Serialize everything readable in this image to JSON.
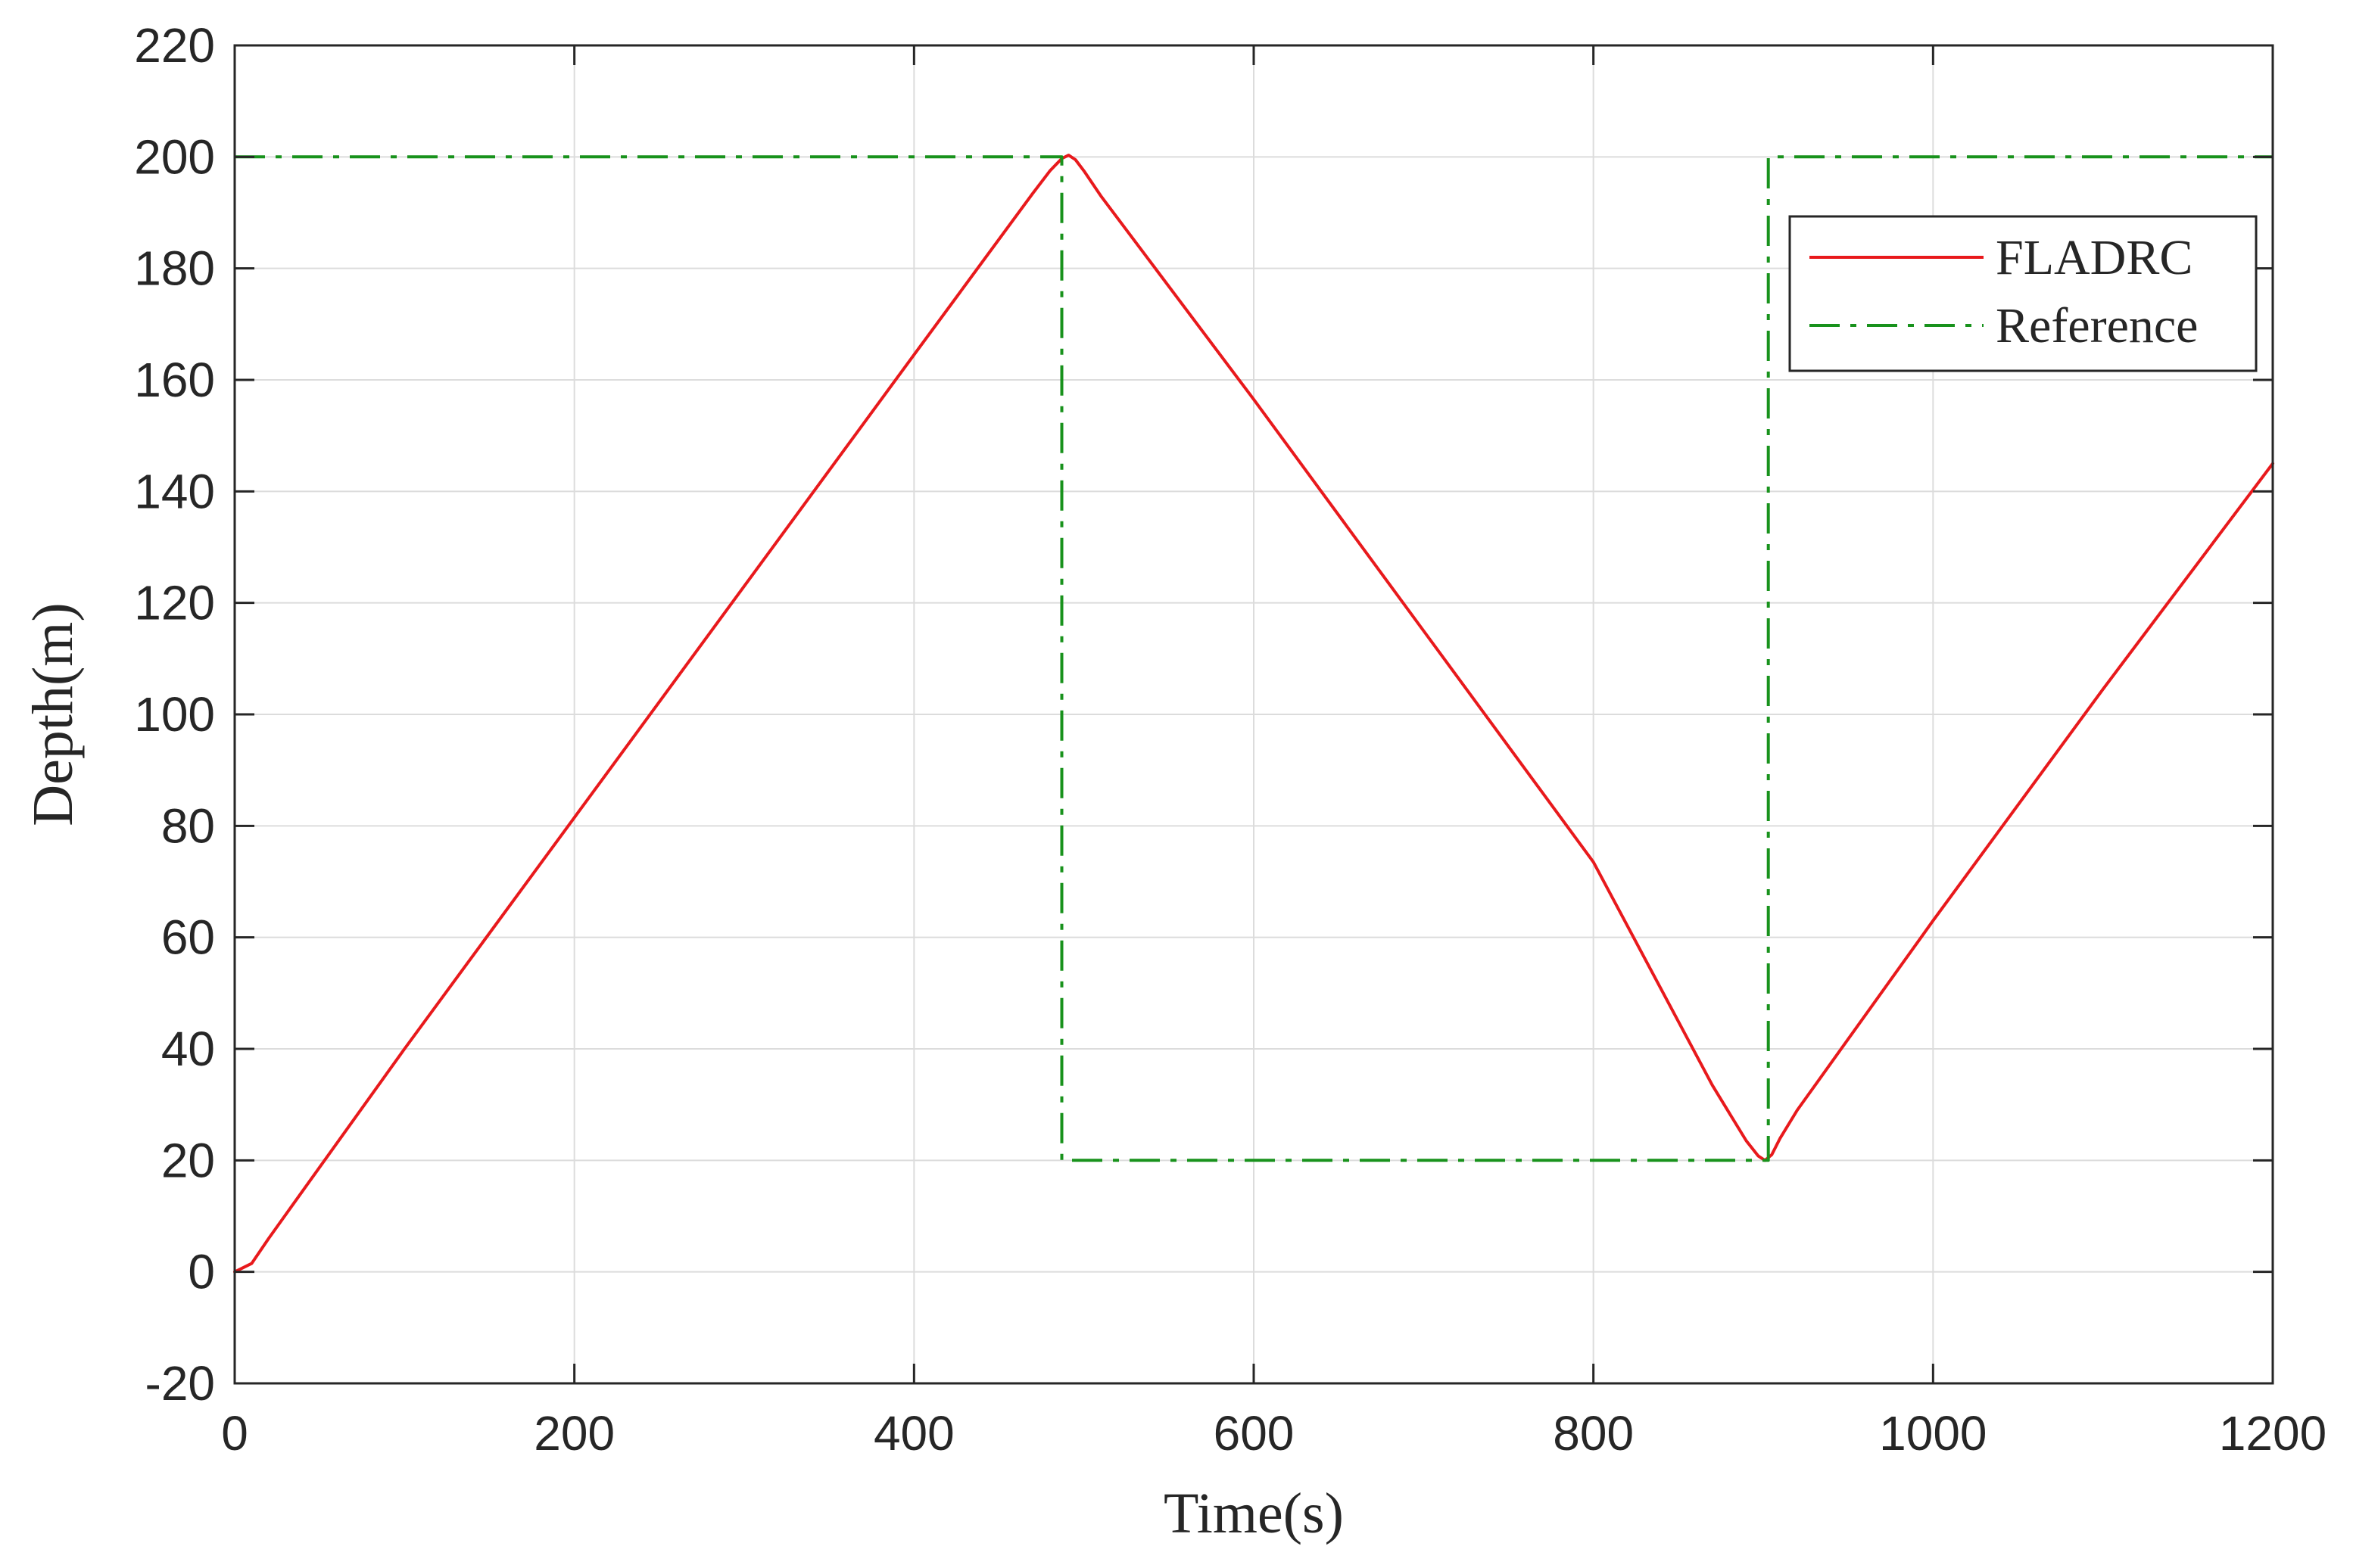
{
  "chart_data": {
    "type": "line",
    "title": "",
    "xlabel": "Time(s)",
    "ylabel": "Depth(m)",
    "xlim": [
      0,
      1200
    ],
    "ylim": [
      -20,
      220
    ],
    "x_ticks": [
      0,
      200,
      400,
      600,
      800,
      1000,
      1200
    ],
    "y_ticks": [
      -20,
      0,
      20,
      40,
      60,
      80,
      100,
      120,
      140,
      160,
      180,
      200,
      220
    ],
    "grid": true,
    "legend_position": "top-right",
    "series": [
      {
        "name": "FLADRC",
        "color": "#e8191c",
        "style": "solid",
        "x": [
          0,
          10,
          20,
          40,
          100,
          200,
          300,
          400,
          470,
          480,
          487,
          491,
          495,
          500,
          510,
          600,
          700,
          800,
          870,
          880,
          890,
          897,
          901,
          905,
          910,
          920,
          1000,
          1100,
          1200
        ],
        "y": [
          0,
          1.5,
          6,
          14.5,
          40,
          81.5,
          123,
          164.5,
          193.5,
          197.5,
          199.7,
          200.3,
          199.5,
          197.5,
          193,
          156.5,
          115,
          73.5,
          33.5,
          28.5,
          23.5,
          20.8,
          20,
          21,
          24,
          29,
          63,
          104.5,
          145
        ]
      },
      {
        "name": "Reference",
        "color": "#18921c",
        "style": "dashdot",
        "x": [
          0,
          487,
          487,
          903,
          903,
          1200
        ],
        "y": [
          200,
          200,
          20,
          20,
          200,
          200
        ]
      }
    ]
  }
}
